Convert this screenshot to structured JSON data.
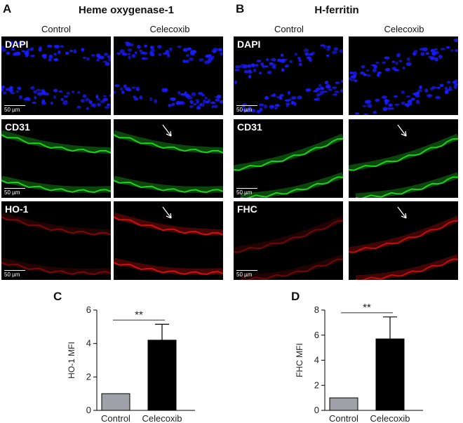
{
  "panels": {
    "A": {
      "letter": "A",
      "title": "Heme oxygenase-1",
      "col_control": "Control",
      "col_celecoxib": "Celecoxib",
      "rows": [
        "DAPI",
        "CD31",
        "HO-1"
      ]
    },
    "B": {
      "letter": "B",
      "title": "H-ferritin",
      "col_control": "Control",
      "col_celecoxib": "Celecoxib",
      "rows": [
        "DAPI",
        "CD31",
        "FHC"
      ]
    }
  },
  "scale_bar": "50 µm",
  "stain_colors": {
    "DAPI": "#1a1aff",
    "CD31": "#22dd22",
    "HO-1": "#e01010",
    "FHC": "#cc1010"
  },
  "chart_data": [
    {
      "letter": "C",
      "type": "bar",
      "categories": [
        "Control",
        "Celecoxib"
      ],
      "values": [
        1.0,
        4.2
      ],
      "errors": [
        0,
        0.95
      ],
      "colors": [
        "#a0a0a8",
        "#000000"
      ],
      "ylabel": "HO-1 MFI",
      "ylim": [
        0,
        6
      ],
      "yticks": [
        0,
        2,
        4,
        6
      ],
      "significance": "**"
    },
    {
      "letter": "D",
      "type": "bar",
      "categories": [
        "Control",
        "Celecoxib"
      ],
      "values": [
        1.0,
        5.7
      ],
      "errors": [
        0,
        1.75
      ],
      "colors": [
        "#a0a0a8",
        "#000000"
      ],
      "ylabel": "FHC MFI",
      "ylim": [
        0,
        8
      ],
      "yticks": [
        0,
        2,
        4,
        6,
        8
      ],
      "significance": "**"
    }
  ]
}
